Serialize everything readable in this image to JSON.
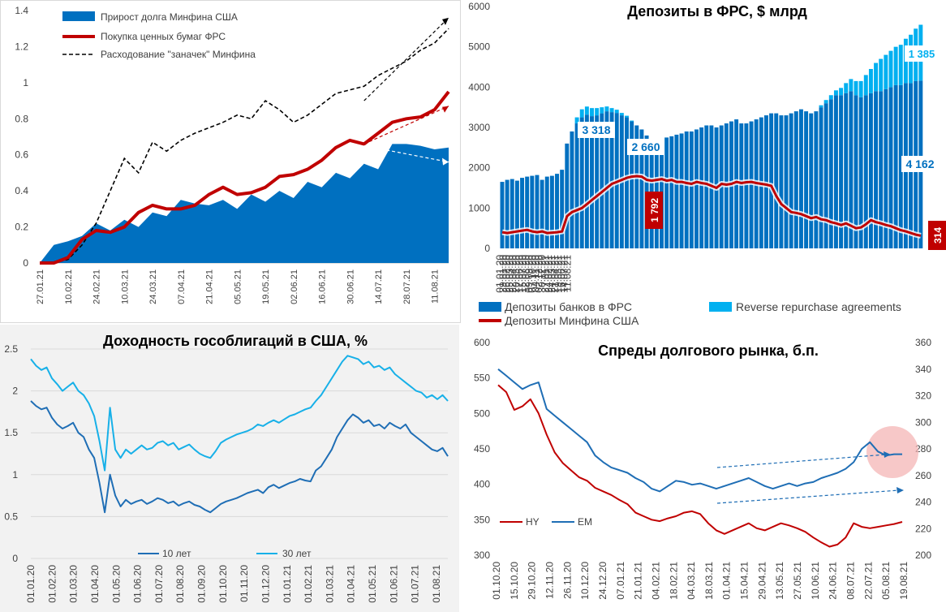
{
  "charts": [
    {
      "id": "debt",
      "chart_data": {
        "type": "area",
        "title": "",
        "ylim": [
          0,
          1.4
        ],
        "yticks": [
          "0",
          "0.2",
          "0.4",
          "0.6",
          "0.8",
          "1",
          "1.2",
          "1.4"
        ],
        "xticks": [
          "27.01.21",
          "10.02.21",
          "24.02.21",
          "10.03.21",
          "24.03.21",
          "07.04.21",
          "21.04.21",
          "05.05.21",
          "19.05.21",
          "02.06.21",
          "16.06.21",
          "30.06.21",
          "14.07.21",
          "28.07.21",
          "11.08.21"
        ],
        "x_count": 30,
        "series": [
          {
            "name": "Прирост долга Минфина США",
            "kind": "area",
            "color": "#0070c0",
            "values": [
              0,
              0.1,
              0.12,
              0.15,
              0.22,
              0.18,
              0.24,
              0.2,
              0.28,
              0.26,
              0.35,
              0.33,
              0.32,
              0.35,
              0.3,
              0.38,
              0.34,
              0.4,
              0.36,
              0.45,
              0.42,
              0.5,
              0.47,
              0.55,
              0.52,
              0.66,
              0.66,
              0.65,
              0.63,
              0.64
            ]
          },
          {
            "name": "Покупка ценных бумаг ФРС",
            "kind": "line",
            "color": "#c00000",
            "values": [
              0,
              0.0,
              0.03,
              0.13,
              0.18,
              0.17,
              0.2,
              0.28,
              0.32,
              0.3,
              0.3,
              0.32,
              0.38,
              0.42,
              0.38,
              0.39,
              0.42,
              0.48,
              0.49,
              0.52,
              0.57,
              0.64,
              0.68,
              0.66,
              0.72,
              0.78,
              0.8,
              0.81,
              0.85,
              0.95
            ]
          },
          {
            "name": "Расходование \"заначек\" Минфина",
            "kind": "dash",
            "color": "#000000",
            "values": [
              0,
              0.0,
              0.02,
              0.1,
              0.22,
              0.4,
              0.58,
              0.5,
              0.67,
              0.62,
              0.68,
              0.72,
              0.75,
              0.78,
              0.82,
              0.8,
              0.9,
              0.85,
              0.78,
              0.82,
              0.88,
              0.94,
              0.96,
              0.98,
              1.04,
              1.08,
              1.12,
              1.18,
              1.22,
              1.3
            ]
          }
        ]
      }
    },
    {
      "id": "fed",
      "chart_data": {
        "type": "bar",
        "title": "Депозиты в ФРС, $ млрд",
        "ylim": [
          0,
          6000
        ],
        "yticks": [
          "0",
          "1000",
          "2000",
          "3000",
          "4000",
          "5000",
          "6000"
        ],
        "xticks": [
          "01.01.20",
          "29.01.20",
          "26.02.20",
          "25.03.20",
          "22.04.20",
          "20.05.20",
          "17.06.20",
          "15.07.20",
          "12.08.20",
          "09.09.20",
          "07.10.20",
          "04.11.20",
          "02.12.20",
          "30.12.20",
          "27.01.21",
          "24.02.21",
          "24.03.21",
          "21.04.21",
          "19.05.21",
          "16.06.21",
          "14.07.21",
          "11.08.21"
        ],
        "series": [
          {
            "name": "Депозиты банков в ФРС",
            "color": "#0070c0"
          },
          {
            "name": "Reverse repurchase agreements",
            "color": "#00b0f0"
          },
          {
            "name": "Депозиты Минфина США",
            "color": "#c00000"
          }
        ],
        "bank_deposits": [
          1650,
          1700,
          1720,
          1680,
          1750,
          1780,
          1800,
          1820,
          1700,
          1780,
          1800,
          1850,
          1950,
          2600,
          2900,
          3100,
          3250,
          3318,
          3280,
          3300,
          3350,
          3400,
          3380,
          3360,
          3300,
          3250,
          3150,
          3050,
          2950,
          2800,
          2700,
          2660,
          2700,
          2750,
          2780,
          2820,
          2850,
          2900,
          2900,
          2950,
          3000,
          3050,
          3050,
          3000,
          3050,
          3100,
          3150,
          3200,
          3100,
          3100,
          3150,
          3200,
          3250,
          3300,
          3350,
          3350,
          3300,
          3300,
          3350,
          3400,
          3450,
          3400,
          3350,
          3400,
          3500,
          3600,
          3700,
          3800,
          3800,
          3850,
          3900,
          3800,
          3750,
          3800,
          3850,
          3900,
          3900,
          3950,
          4000,
          4050,
          4050,
          4100,
          4100,
          4150,
          4162
        ],
        "reverse_repo": [
          0,
          0,
          0,
          0,
          0,
          0,
          0,
          0,
          0,
          0,
          0,
          0,
          0,
          0,
          0,
          150,
          200,
          200,
          200,
          180,
          150,
          120,
          100,
          80,
          60,
          40,
          20,
          0,
          0,
          0,
          0,
          0,
          0,
          0,
          0,
          0,
          0,
          0,
          0,
          0,
          0,
          0,
          0,
          0,
          0,
          0,
          0,
          0,
          0,
          0,
          0,
          0,
          0,
          0,
          0,
          0,
          0,
          0,
          0,
          0,
          0,
          0,
          0,
          0,
          50,
          80,
          100,
          120,
          180,
          250,
          300,
          350,
          400,
          500,
          600,
          700,
          800,
          850,
          900,
          950,
          1000,
          1100,
          1200,
          1300,
          1385
        ],
        "treasury_deposits": [
          400,
          380,
          400,
          420,
          440,
          460,
          420,
          400,
          420,
          380,
          390,
          400,
          420,
          800,
          900,
          950,
          1000,
          1100,
          1200,
          1300,
          1400,
          1500,
          1600,
          1650,
          1700,
          1750,
          1780,
          1792,
          1780,
          1700,
          1680,
          1700,
          1720,
          1680,
          1700,
          1650,
          1650,
          1620,
          1600,
          1650,
          1620,
          1600,
          1550,
          1500,
          1600,
          1580,
          1600,
          1650,
          1620,
          1640,
          1650,
          1620,
          1600,
          1580,
          1550,
          1300,
          1100,
          1000,
          900,
          880,
          850,
          800,
          750,
          780,
          720,
          700,
          650,
          620,
          580,
          620,
          560,
          500,
          520,
          600,
          700,
          650,
          620,
          580,
          550,
          500,
          450,
          420,
          380,
          340,
          314
        ],
        "labels": {
          "a": "3 318",
          "b": "2 660",
          "c": "4 162",
          "d": "1 385",
          "e": "1 792",
          "f": "314"
        }
      }
    },
    {
      "id": "yields",
      "chart_data": {
        "type": "line",
        "title": "Доходность гособлигаций в США, %",
        "ylim": [
          0,
          2.5
        ],
        "yticks": [
          "0",
          "0.5",
          "1",
          "1.5",
          "2",
          "2.5"
        ],
        "xticks": [
          "01.01.20",
          "01.02.20",
          "01.03.20",
          "01.04.20",
          "01.05.20",
          "01.06.20",
          "01.07.20",
          "01.08.20",
          "01.09.20",
          "01.10.20",
          "01.11.20",
          "01.12.20",
          "01.01.21",
          "01.02.21",
          "01.03.21",
          "01.04.21",
          "01.05.21",
          "01.06.21",
          "01.07.21",
          "01.08.21"
        ],
        "series": [
          {
            "name": "10 лет",
            "color": "#1f6eb5",
            "values": [
              1.88,
              1.82,
              1.78,
              1.8,
              1.68,
              1.6,
              1.55,
              1.58,
              1.62,
              1.5,
              1.45,
              1.3,
              1.2,
              0.9,
              0.55,
              1.0,
              0.75,
              0.62,
              0.7,
              0.65,
              0.68,
              0.7,
              0.65,
              0.68,
              0.72,
              0.7,
              0.66,
              0.68,
              0.63,
              0.66,
              0.68,
              0.64,
              0.62,
              0.58,
              0.55,
              0.6,
              0.65,
              0.68,
              0.7,
              0.72,
              0.75,
              0.78,
              0.8,
              0.82,
              0.78,
              0.85,
              0.88,
              0.84,
              0.87,
              0.9,
              0.92,
              0.95,
              0.93,
              0.92,
              1.05,
              1.1,
              1.2,
              1.3,
              1.45,
              1.55,
              1.65,
              1.72,
              1.68,
              1.62,
              1.65,
              1.58,
              1.6,
              1.55,
              1.62,
              1.58,
              1.55,
              1.6,
              1.5,
              1.45,
              1.4,
              1.35,
              1.3,
              1.28,
              1.32,
              1.22
            ]
          },
          {
            "name": "30 лет",
            "color": "#17b0e8",
            "values": [
              2.38,
              2.3,
              2.25,
              2.28,
              2.15,
              2.08,
              2.0,
              2.05,
              2.1,
              2.0,
              1.95,
              1.85,
              1.7,
              1.4,
              1.05,
              1.8,
              1.3,
              1.2,
              1.3,
              1.25,
              1.3,
              1.35,
              1.3,
              1.32,
              1.38,
              1.4,
              1.35,
              1.38,
              1.3,
              1.33,
              1.36,
              1.3,
              1.25,
              1.22,
              1.2,
              1.28,
              1.38,
              1.42,
              1.45,
              1.48,
              1.5,
              1.52,
              1.55,
              1.6,
              1.58,
              1.62,
              1.65,
              1.62,
              1.66,
              1.7,
              1.72,
              1.75,
              1.78,
              1.8,
              1.88,
              1.95,
              2.05,
              2.15,
              2.25,
              2.35,
              2.42,
              2.4,
              2.38,
              2.32,
              2.35,
              2.28,
              2.3,
              2.25,
              2.28,
              2.2,
              2.15,
              2.1,
              2.05,
              2.0,
              1.98,
              1.92,
              1.95,
              1.9,
              1.95,
              1.88
            ]
          }
        ]
      }
    },
    {
      "id": "spreads",
      "chart_data": {
        "type": "line",
        "title": "Спреды долгового рынка, б.п.",
        "ylim": [
          300,
          600
        ],
        "y2lim": [
          200,
          360
        ],
        "yticks": [
          "300",
          "350",
          "400",
          "450",
          "500",
          "550",
          "600"
        ],
        "y2ticks": [
          "200",
          "220",
          "240",
          "260",
          "280",
          "300",
          "320",
          "340",
          "360"
        ],
        "xticks": [
          "01.10.20",
          "15.10.20",
          "29.10.20",
          "12.11.20",
          "26.11.20",
          "10.12.20",
          "24.12.20",
          "07.01.21",
          "21.01.21",
          "04.02.21",
          "18.02.21",
          "04.03.21",
          "18.03.21",
          "01.04.21",
          "15.04.21",
          "29.04.21",
          "13.05.21",
          "27.05.21",
          "10.06.21",
          "24.06.21",
          "08.07.21",
          "22.07.21",
          "05.08.21",
          "19.08.21"
        ],
        "series": [
          {
            "name": "HY",
            "axis": "left",
            "color": "#c00000",
            "values": [
              540,
              530,
              505,
              510,
              520,
              500,
              470,
              445,
              430,
              420,
              410,
              405,
              395,
              390,
              385,
              378,
              372,
              360,
              355,
              350,
              348,
              352,
              355,
              360,
              362,
              358,
              345,
              335,
              330,
              335,
              340,
              345,
              338,
              335,
              340,
              345,
              342,
              338,
              333,
              325,
              318,
              312,
              315,
              325,
              345,
              340,
              338,
              340,
              342,
              344,
              347
            ]
          },
          {
            "name": "EM",
            "axis": "right",
            "color": "#1f6eb5",
            "values": [
              340,
              335,
              330,
              325,
              328,
              330,
              310,
              305,
              300,
              295,
              290,
              285,
              275,
              270,
              266,
              264,
              262,
              258,
              255,
              250,
              248,
              252,
              256,
              255,
              253,
              254,
              252,
              250,
              252,
              254,
              256,
              258,
              255,
              252,
              250,
              252,
              254,
              252,
              254,
              255,
              258,
              260,
              262,
              265,
              270,
              280,
              285,
              278,
              275,
              276,
              276
            ]
          }
        ]
      }
    }
  ]
}
